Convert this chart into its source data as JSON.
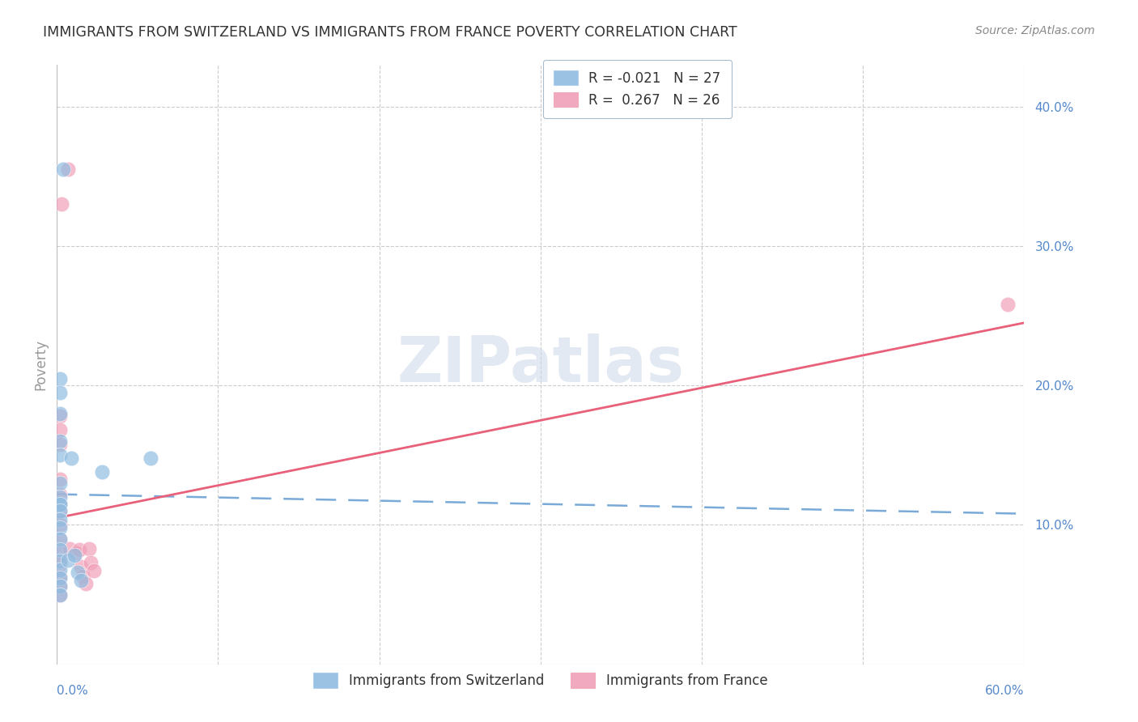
{
  "title": "IMMIGRANTS FROM SWITZERLAND VS IMMIGRANTS FROM FRANCE POVERTY CORRELATION CHART",
  "source": "Source: ZipAtlas.com",
  "ylabel": "Poverty",
  "watermark": "ZIPatlas",
  "legend_top": [
    {
      "label": "R = -0.021   N = 27",
      "color": "#a8c4e0"
    },
    {
      "label": "R =  0.267   N = 26",
      "color": "#f4a8b8"
    }
  ],
  "legend_labels_bottom": [
    "Immigrants from Switzerland",
    "Immigrants from France"
  ],
  "ytick_positions": [
    0.1,
    0.2,
    0.3,
    0.4
  ],
  "ytick_labels": [
    "10.0%",
    "20.0%",
    "30.0%",
    "40.0%"
  ],
  "xlim": [
    0.0,
    0.6
  ],
  "ylim": [
    0.0,
    0.43
  ],
  "color_swiss": "#90bce0",
  "color_france": "#f0a0b8",
  "trendline_swiss_color": "#7aaad8",
  "trendline_france_color": "#e8607a",
  "background_color": "#ffffff",
  "swiss_points": [
    [
      0.004,
      0.355
    ],
    [
      0.002,
      0.115
    ],
    [
      0.002,
      0.205
    ],
    [
      0.002,
      0.195
    ],
    [
      0.002,
      0.18
    ],
    [
      0.002,
      0.16
    ],
    [
      0.002,
      0.15
    ],
    [
      0.002,
      0.13
    ],
    [
      0.002,
      0.12
    ],
    [
      0.002,
      0.115
    ],
    [
      0.002,
      0.11
    ],
    [
      0.002,
      0.104
    ],
    [
      0.002,
      0.098
    ],
    [
      0.002,
      0.09
    ],
    [
      0.002,
      0.082
    ],
    [
      0.002,
      0.074
    ],
    [
      0.002,
      0.068
    ],
    [
      0.002,
      0.062
    ],
    [
      0.002,
      0.056
    ],
    [
      0.002,
      0.05
    ],
    [
      0.007,
      0.075
    ],
    [
      0.009,
      0.148
    ],
    [
      0.011,
      0.078
    ],
    [
      0.013,
      0.066
    ],
    [
      0.015,
      0.06
    ],
    [
      0.028,
      0.138
    ],
    [
      0.058,
      0.148
    ]
  ],
  "france_points": [
    [
      0.003,
      0.33
    ],
    [
      0.007,
      0.355
    ],
    [
      0.002,
      0.178
    ],
    [
      0.002,
      0.168
    ],
    [
      0.002,
      0.158
    ],
    [
      0.002,
      0.133
    ],
    [
      0.002,
      0.122
    ],
    [
      0.002,
      0.116
    ],
    [
      0.002,
      0.11
    ],
    [
      0.002,
      0.1
    ],
    [
      0.002,
      0.09
    ],
    [
      0.002,
      0.08
    ],
    [
      0.002,
      0.072
    ],
    [
      0.002,
      0.063
    ],
    [
      0.002,
      0.056
    ],
    [
      0.002,
      0.05
    ],
    [
      0.008,
      0.083
    ],
    [
      0.012,
      0.08
    ],
    [
      0.014,
      0.082
    ],
    [
      0.015,
      0.07
    ],
    [
      0.016,
      0.063
    ],
    [
      0.018,
      0.058
    ],
    [
      0.02,
      0.083
    ],
    [
      0.021,
      0.073
    ],
    [
      0.023,
      0.067
    ],
    [
      0.59,
      0.258
    ]
  ],
  "swiss_trendline_x": [
    0.0,
    0.6
  ],
  "swiss_trendline_y": [
    0.122,
    0.108
  ],
  "france_trendline_x": [
    0.0,
    0.6
  ],
  "france_trendline_y": [
    0.105,
    0.245
  ]
}
